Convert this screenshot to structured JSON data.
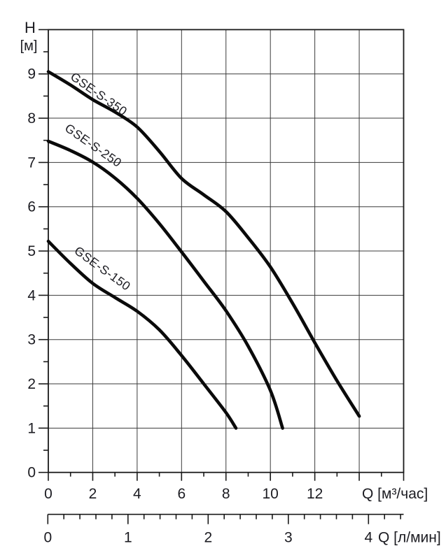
{
  "chart_data": {
    "type": "line",
    "description": "Pump head vs flow performance curves",
    "grid": true,
    "y_axis": {
      "label_line1": "H",
      "label_line2": "[м]",
      "min": 0,
      "max": 10,
      "major_step": 1,
      "minor_step": 0.5,
      "tick_labels": [
        "0",
        "1",
        "2",
        "3",
        "4",
        "5",
        "6",
        "7",
        "8",
        "9"
      ]
    },
    "x_axis": {
      "label": "Q [м³/час]",
      "min": 0,
      "max": 16,
      "major_step": 2,
      "minor_step": 1,
      "tick_labels": [
        "0",
        "2",
        "4",
        "6",
        "8",
        "10",
        "12"
      ]
    },
    "x_axis_secondary": {
      "label": "Q [л/мин]",
      "min": 0,
      "max": 4.43,
      "major_step": 1,
      "minor_step": 0.2,
      "tick_labels": [
        "0",
        "1",
        "2",
        "3",
        "4"
      ]
    },
    "series": [
      {
        "name": "GSE-S-350",
        "points": [
          [
            0,
            9.05
          ],
          [
            1,
            8.75
          ],
          [
            2,
            8.42
          ],
          [
            3,
            8.14
          ],
          [
            4,
            7.8
          ],
          [
            5,
            7.25
          ],
          [
            6,
            6.64
          ],
          [
            7,
            6.27
          ],
          [
            8,
            5.89
          ],
          [
            9,
            5.3
          ],
          [
            10,
            4.64
          ],
          [
            11,
            3.82
          ],
          [
            12,
            2.93
          ],
          [
            13,
            2.07
          ],
          [
            14,
            1.27
          ]
        ],
        "label": {
          "x": 2.17,
          "h": 8.47,
          "angle": 35
        }
      },
      {
        "name": "GSE-S-250",
        "points": [
          [
            0,
            7.48
          ],
          [
            1,
            7.27
          ],
          [
            2,
            7.01
          ],
          [
            3,
            6.65
          ],
          [
            4,
            6.19
          ],
          [
            5,
            5.62
          ],
          [
            6,
            4.98
          ],
          [
            7,
            4.32
          ],
          [
            8,
            3.65
          ],
          [
            9,
            2.85
          ],
          [
            10,
            1.85
          ],
          [
            10.55,
            1.0
          ]
        ],
        "label": {
          "x": 1.92,
          "h": 7.31,
          "angle": 35
        }
      },
      {
        "name": "GSE-S-150",
        "points": [
          [
            0,
            5.22
          ],
          [
            1,
            4.72
          ],
          [
            2,
            4.27
          ],
          [
            3,
            3.95
          ],
          [
            4,
            3.64
          ],
          [
            5,
            3.22
          ],
          [
            6,
            2.64
          ],
          [
            7,
            2.0
          ],
          [
            8,
            1.35
          ],
          [
            8.45,
            1.0
          ]
        ],
        "label": {
          "x": 2.33,
          "h": 4.53,
          "angle": 36
        }
      }
    ],
    "colors": {
      "curve": "#0a0a0a",
      "grid": "#3b3b3b",
      "axis": "#1a1a1a",
      "text": "#1c1c22",
      "background": "#ffffff"
    }
  }
}
